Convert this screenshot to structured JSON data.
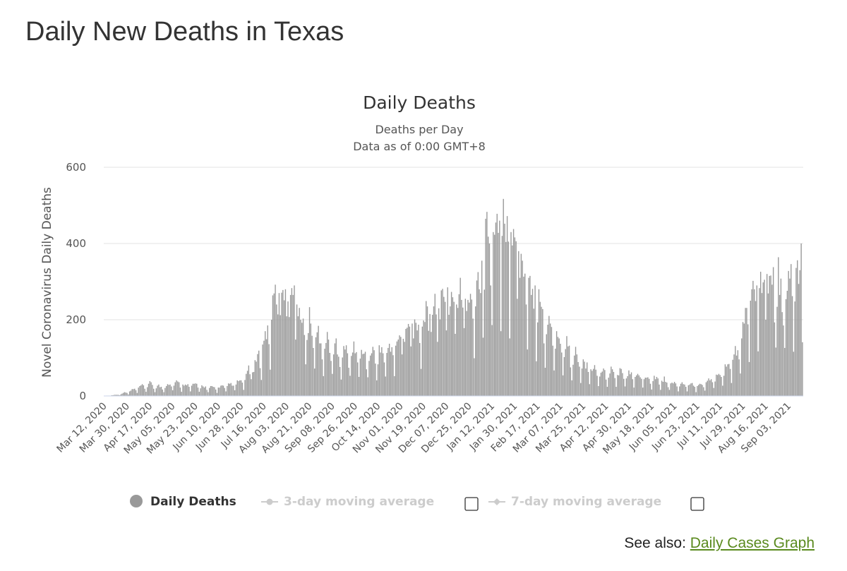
{
  "page": {
    "title": "Daily New Deaths in Texas",
    "see_also_label": "See also:",
    "see_also_link": "Daily Cases Graph"
  },
  "colors": {
    "bar": "#999999",
    "grid": "#e3e3e3",
    "axis": "#ccd6eb",
    "legend_inactive": "#cccccc",
    "link": "#5a8a1e"
  },
  "chart_data": {
    "type": "bar",
    "title": "Daily Deaths",
    "subtitle": [
      "Deaths per Day",
      "Data as of 0:00 GMT+8"
    ],
    "ylabel": "Novel Coronavirus Daily Deaths",
    "ylim": [
      0,
      600
    ],
    "yticks": [
      0,
      200,
      400,
      600
    ],
    "grid": true,
    "x_tick_labels": [
      "Mar 12, 2020",
      "Mar 30, 2020",
      "Apr 17, 2020",
      "May 05, 2020",
      "May 23, 2020",
      "Jun 10, 2020",
      "Jun 28, 2020",
      "Jul 16, 2020",
      "Aug 03, 2020",
      "Aug 21, 2020",
      "Sep 08, 2020",
      "Sep 26, 2020",
      "Oct 14, 2020",
      "Nov 01, 2020",
      "Nov 19, 2020",
      "Dec 07, 2020",
      "Dec 25, 2020",
      "Jan 12, 2021",
      "Jan 30, 2021",
      "Feb 17, 2021",
      "Mar 07, 2021",
      "Mar 25, 2021",
      "Apr 12, 2021",
      "Apr 30, 2021",
      "May 18, 2021",
      "Jun 05, 2021",
      "Jun 23, 2021",
      "Jul 11, 2021",
      "Jul 29, 2021",
      "Aug 16, 2021",
      "Sep 03, 2021"
    ],
    "tick_interval_days": 18,
    "series": [
      {
        "name": "Daily Deaths",
        "start_date": "2020-03-12",
        "end_date": "2021-09-14",
        "envelope": [
          [
            0,
            0
          ],
          [
            10,
            3
          ],
          [
            20,
            12
          ],
          [
            30,
            25
          ],
          [
            36,
            30
          ],
          [
            45,
            22
          ],
          [
            54,
            35
          ],
          [
            63,
            30
          ],
          [
            72,
            28
          ],
          [
            81,
            22
          ],
          [
            90,
            22
          ],
          [
            99,
            28
          ],
          [
            108,
            38
          ],
          [
            117,
            60
          ],
          [
            123,
            110
          ],
          [
            126,
            145
          ],
          [
            129,
            165
          ],
          [
            132,
            200
          ],
          [
            135,
            245
          ],
          [
            138,
            265
          ],
          [
            141,
            255
          ],
          [
            144,
            245
          ],
          [
            147,
            265
          ],
          [
            150,
            235
          ],
          [
            153,
            220
          ],
          [
            156,
            205
          ],
          [
            162,
            180
          ],
          [
            171,
            145
          ],
          [
            180,
            125
          ],
          [
            189,
            110
          ],
          [
            198,
            115
          ],
          [
            207,
            105
          ],
          [
            216,
            110
          ],
          [
            225,
            120
          ],
          [
            234,
            145
          ],
          [
            243,
            175
          ],
          [
            252,
            195
          ],
          [
            261,
            215
          ],
          [
            270,
            235
          ],
          [
            279,
            240
          ],
          [
            288,
            250
          ],
          [
            297,
            310
          ],
          [
            300,
            350
          ],
          [
            303,
            390
          ],
          [
            306,
            420
          ],
          [
            309,
            430
          ],
          [
            312,
            440
          ],
          [
            315,
            425
          ],
          [
            318,
            415
          ],
          [
            321,
            410
          ],
          [
            324,
            395
          ],
          [
            327,
            345
          ],
          [
            330,
            305
          ],
          [
            333,
            285
          ],
          [
            336,
            280
          ],
          [
            339,
            255
          ],
          [
            342,
            230
          ],
          [
            351,
            180
          ],
          [
            360,
            140
          ],
          [
            369,
            110
          ],
          [
            378,
            80
          ],
          [
            387,
            65
          ],
          [
            396,
            60
          ],
          [
            405,
            60
          ],
          [
            414,
            55
          ],
          [
            423,
            52
          ],
          [
            432,
            48
          ],
          [
            441,
            40
          ],
          [
            450,
            32
          ],
          [
            459,
            28
          ],
          [
            468,
            28
          ],
          [
            477,
            38
          ],
          [
            486,
            60
          ],
          [
            495,
            85
          ],
          [
            501,
            130
          ],
          [
            504,
            170
          ],
          [
            510,
            240
          ],
          [
            513,
            275
          ],
          [
            516,
            285
          ],
          [
            519,
            280
          ],
          [
            522,
            275
          ],
          [
            525,
            280
          ],
          [
            531,
            300
          ],
          [
            551,
            300
          ]
        ],
        "weekday_factors": [
          1.1,
          1.18,
          1.12,
          1.05,
          0.78,
          0.42,
          0.92
        ],
        "peak_points": [
          [
            114,
            80
          ],
          [
            117,
            62
          ],
          [
            125,
            135
          ],
          [
            127,
            170
          ],
          [
            129,
            185
          ],
          [
            132,
            200
          ],
          [
            136,
            240
          ],
          [
            138,
            270
          ],
          [
            141,
            278
          ],
          [
            143,
            280
          ],
          [
            145,
            248
          ],
          [
            147,
            265
          ],
          [
            150,
            290
          ],
          [
            152,
            240
          ],
          [
            155,
            200
          ],
          [
            161,
            165
          ],
          [
            236,
            150
          ],
          [
            243,
            190
          ],
          [
            257,
            215
          ],
          [
            264,
            230
          ],
          [
            271,
            285
          ],
          [
            278,
            240
          ],
          [
            285,
            255
          ],
          [
            288,
            245
          ],
          [
            295,
            325
          ],
          [
            298,
            355
          ],
          [
            301,
            465
          ],
          [
            304,
            400
          ],
          [
            307,
            430
          ],
          [
            309,
            455
          ],
          [
            312,
            460
          ],
          [
            314,
            420
          ],
          [
            316,
            452
          ],
          [
            319,
            405
          ],
          [
            321,
            430
          ],
          [
            323,
            438
          ],
          [
            327,
            380
          ],
          [
            330,
            355
          ],
          [
            335,
            310
          ],
          [
            340,
            290
          ],
          [
            343,
            280
          ],
          [
            346,
            228
          ],
          [
            352,
            190
          ],
          [
            357,
            170
          ],
          [
            510,
            250
          ],
          [
            513,
            280
          ],
          [
            515,
            290
          ],
          [
            519,
            270
          ],
          [
            521,
            305
          ],
          [
            523,
            320
          ],
          [
            525,
            315
          ],
          [
            533,
            265
          ],
          [
            535,
            220
          ],
          [
            536,
            185
          ],
          [
            550,
            400
          ]
        ]
      }
    ],
    "legend": {
      "placement": "bottom-center",
      "items": [
        {
          "name": "Daily Deaths",
          "active": true
        },
        {
          "name": "3-day moving average",
          "active": false
        },
        {
          "name": "7-day moving average",
          "active": false
        }
      ]
    }
  }
}
